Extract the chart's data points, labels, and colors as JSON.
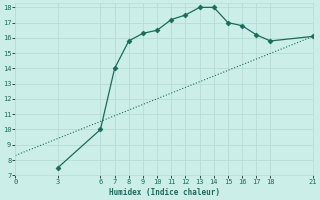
{
  "xlabel": "Humidex (Indice chaleur)",
  "background_color": "#cceee8",
  "grid_color": "#b8ddd6",
  "line_color": "#1a6b5a",
  "curve1_x": [
    3,
    6,
    7,
    8,
    9,
    10,
    11,
    12,
    13,
    14,
    15,
    16,
    17,
    18,
    21
  ],
  "curve1_y": [
    7.5,
    10.0,
    14.0,
    15.8,
    16.3,
    16.5,
    17.2,
    17.5,
    18.0,
    18.0,
    17.0,
    16.8,
    16.2,
    15.8,
    16.1
  ],
  "curve2_x": [
    0,
    21
  ],
  "curve2_y": [
    8.3,
    16.1
  ],
  "xlim": [
    0,
    21
  ],
  "ylim": [
    7,
    18.3
  ],
  "xticks": [
    0,
    3,
    6,
    7,
    8,
    9,
    10,
    11,
    12,
    13,
    14,
    15,
    16,
    17,
    18,
    21
  ],
  "yticks": [
    7,
    8,
    9,
    10,
    11,
    12,
    13,
    14,
    15,
    16,
    17,
    18
  ]
}
